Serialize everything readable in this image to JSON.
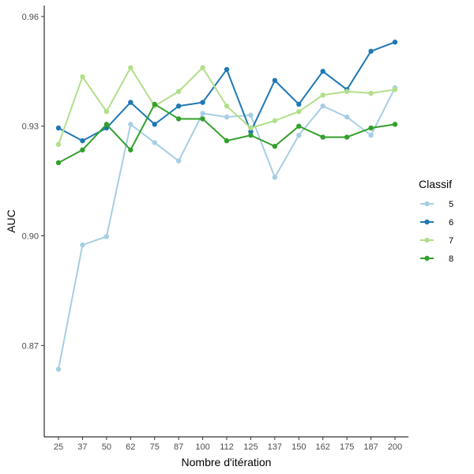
{
  "chart_data": {
    "type": "line",
    "title": "",
    "xlabel": "Nombre d'itération",
    "ylabel": "AUC",
    "categories": [
      "25",
      "37",
      "50",
      "62",
      "75",
      "87",
      "100",
      "112",
      "125",
      "137",
      "150",
      "162",
      "175",
      "187",
      "200"
    ],
    "yticks": [
      "0.87",
      "0.90",
      "0.93",
      "0.96"
    ],
    "ylim": [
      0.845,
      0.963
    ],
    "grid": false,
    "legend": {
      "title": "Classif",
      "position": "right"
    },
    "series": [
      {
        "name": "5",
        "color": "#a6cee3",
        "values": [
          0.8635,
          0.8975,
          0.8998,
          0.9305,
          0.9255,
          0.9205,
          0.9335,
          0.9325,
          0.933,
          0.916,
          0.9275,
          0.9355,
          0.9325,
          0.9275,
          0.9405
        ]
      },
      {
        "name": "6",
        "color": "#1f78b4",
        "values": [
          0.9295,
          0.926,
          0.9295,
          0.9365,
          0.9305,
          0.9355,
          0.9365,
          0.9455,
          0.9285,
          0.9425,
          0.936,
          0.945,
          0.94,
          0.9505,
          0.953
        ]
      },
      {
        "name": "7",
        "color": "#b2df8a",
        "values": [
          0.925,
          0.9435,
          0.934,
          0.946,
          0.9355,
          0.9395,
          0.946,
          0.9355,
          0.9295,
          0.9315,
          0.934,
          0.9385,
          0.9395,
          0.939,
          0.94
        ]
      },
      {
        "name": "8",
        "color": "#33a02c",
        "values": [
          0.92,
          0.9235,
          0.9305,
          0.9235,
          0.936,
          0.932,
          0.932,
          0.926,
          0.9275,
          0.9245,
          0.93,
          0.927,
          0.927,
          0.9295,
          0.9305
        ]
      }
    ]
  }
}
